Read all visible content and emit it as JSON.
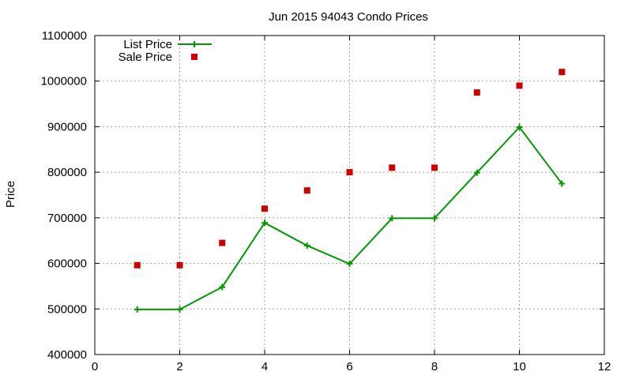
{
  "chart_data": {
    "type": "line",
    "title": "Jun 2015 94043 Condo Prices",
    "xlabel": "",
    "ylabel": "Price",
    "xlim": [
      0,
      12
    ],
    "ylim": [
      400000,
      1100000
    ],
    "x_ticks": [
      0,
      2,
      4,
      6,
      8,
      10,
      12
    ],
    "y_ticks": [
      400000,
      500000,
      600000,
      700000,
      800000,
      900000,
      1000000,
      1100000
    ],
    "grid": true,
    "legend_position": "top-left",
    "series": [
      {
        "name": "List Price",
        "kind": "line-with-plus-markers",
        "color": "#009900",
        "x": [
          1,
          2,
          3,
          4,
          5,
          6,
          7,
          8,
          9,
          10,
          11
        ],
        "values": [
          499000,
          499000,
          548000,
          689000,
          639000,
          599000,
          699000,
          699000,
          799000,
          899000,
          775000
        ]
      },
      {
        "name": "Sale Price",
        "kind": "square-points",
        "color": "#cc0000",
        "x": [
          1,
          2,
          3,
          4,
          5,
          6,
          7,
          8,
          9,
          10,
          11
        ],
        "values": [
          596000,
          596000,
          645000,
          720000,
          760000,
          800000,
          810000,
          810000,
          975000,
          990000,
          1020000
        ]
      }
    ]
  }
}
